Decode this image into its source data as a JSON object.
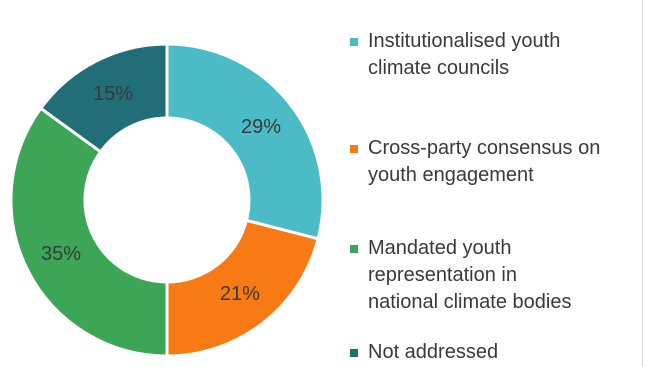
{
  "chart_data": {
    "type": "pie",
    "donut": true,
    "categories": [
      "Institutionalised youth climate councils",
      "Cross-party consensus on youth engagement",
      "Mandated youth representation in national climate bodies",
      "Not addressed"
    ],
    "values": [
      29,
      21,
      35,
      15
    ],
    "labels": [
      "29%",
      "21%",
      "35%",
      "15%"
    ],
    "colors": [
      "#4bbcc6",
      "#f77a14",
      "#3da556",
      "#216d78"
    ],
    "legend_placement": "right",
    "legend": [
      {
        "lines": [
          "Institutionalised youth",
          "climate councils"
        ],
        "color": "#4bbcc6"
      },
      {
        "lines": [
          "Cross-party consensus on",
          "youth engagement"
        ],
        "color": "#f77a14"
      },
      {
        "lines": [
          "Mandated youth",
          "representation in",
          "national climate bodies"
        ],
        "color": "#3da556"
      },
      {
        "lines": [
          "Not addressed"
        ],
        "color": "#216d78"
      }
    ]
  }
}
